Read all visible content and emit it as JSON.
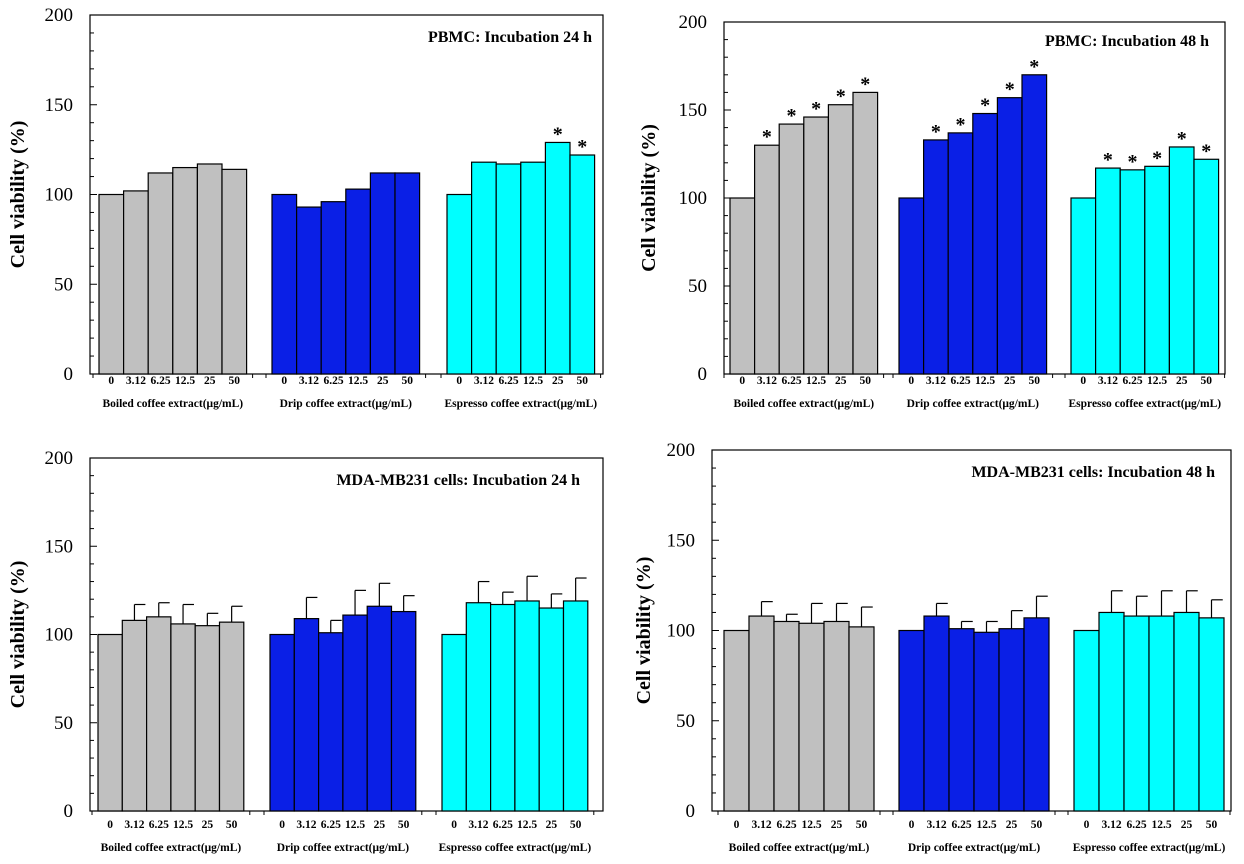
{
  "chart_data": [
    {
      "type": "bar",
      "title": "PBMC: Incubation 24 h",
      "ylabel": "Cell viability (%)",
      "ylim": [
        0,
        200
      ],
      "yticks": [
        0,
        50,
        100,
        150,
        200
      ],
      "legend": "none",
      "groups": [
        {
          "name": "Boiled coffee extract(μg/mL)",
          "color": "#c0c0c0",
          "categories": [
            "0",
            "3.12",
            "6.25",
            "12.5",
            "25",
            "50"
          ],
          "values": [
            100,
            102,
            112,
            115,
            117,
            114
          ],
          "errors": [
            0,
            0,
            0,
            0,
            0,
            0
          ],
          "significant": [
            false,
            false,
            false,
            false,
            false,
            false
          ]
        },
        {
          "name": "Drip coffee extract(μg/mL)",
          "color": "#0a1fe6",
          "categories": [
            "0",
            "3.12",
            "6.25",
            "12.5",
            "25",
            "50"
          ],
          "values": [
            100,
            93,
            96,
            103,
            112,
            112
          ],
          "errors": [
            0,
            0,
            0,
            0,
            0,
            0
          ],
          "significant": [
            false,
            false,
            false,
            false,
            false,
            false
          ]
        },
        {
          "name": "Espresso coffee extract(μg/mL)",
          "color": "#00ffff",
          "categories": [
            "0",
            "3.12",
            "6.25",
            "12.5",
            "25",
            "50"
          ],
          "values": [
            100,
            118,
            117,
            118,
            129,
            122
          ],
          "errors": [
            0,
            0,
            0,
            0,
            0,
            0
          ],
          "significant": [
            false,
            false,
            false,
            false,
            true,
            true
          ]
        }
      ]
    },
    {
      "type": "bar",
      "title": "PBMC: Incubation 48 h",
      "ylabel": "Cell viability (%)",
      "ylim": [
        0,
        200
      ],
      "yticks": [
        0,
        50,
        100,
        150,
        200
      ],
      "legend": "none",
      "groups": [
        {
          "name": "Boiled coffee extract(μg/mL)",
          "color": "#c0c0c0",
          "categories": [
            "0",
            "3.12",
            "6.25",
            "12.5",
            "25",
            "50"
          ],
          "values": [
            100,
            130,
            142,
            146,
            153,
            160
          ],
          "errors": [
            0,
            0,
            0,
            0,
            0,
            0
          ],
          "significant": [
            false,
            true,
            true,
            true,
            true,
            true
          ]
        },
        {
          "name": "Drip coffee extract(μg/mL)",
          "color": "#0a1fe6",
          "categories": [
            "0",
            "3.12",
            "6.25",
            "12.5",
            "25",
            "50"
          ],
          "values": [
            100,
            133,
            137,
            148,
            157,
            170
          ],
          "errors": [
            0,
            0,
            0,
            0,
            0,
            0
          ],
          "significant": [
            false,
            true,
            true,
            true,
            true,
            true
          ]
        },
        {
          "name": "Espresso coffee extract(μg/mL)",
          "color": "#00ffff",
          "categories": [
            "0",
            "3.12",
            "6.25",
            "12.5",
            "25",
            "50"
          ],
          "values": [
            100,
            117,
            116,
            118,
            129,
            122
          ],
          "errors": [
            0,
            0,
            0,
            0,
            0,
            0
          ],
          "significant": [
            false,
            true,
            true,
            true,
            true,
            true
          ]
        }
      ]
    },
    {
      "type": "bar",
      "title": "MDA-MB231 cells: Incubation 24 h",
      "ylabel": "Cell viability (%)",
      "ylim": [
        0,
        200
      ],
      "yticks": [
        0,
        50,
        100,
        150,
        200
      ],
      "legend": "none",
      "groups": [
        {
          "name": "Boiled coffee extract(μg/mL)",
          "color": "#c0c0c0",
          "categories": [
            "0",
            "3.12",
            "6.25",
            "12.5",
            "25",
            "50"
          ],
          "values": [
            100,
            108,
            110,
            106,
            105,
            107
          ],
          "errors": [
            0,
            9,
            8,
            11,
            7,
            9
          ],
          "significant": [
            false,
            false,
            false,
            false,
            false,
            false
          ]
        },
        {
          "name": "Drip coffee extract(μg/mL)",
          "color": "#0a1fe6",
          "categories": [
            "0",
            "3.12",
            "6.25",
            "12.5",
            "25",
            "50"
          ],
          "values": [
            100,
            109,
            101,
            111,
            116,
            113
          ],
          "errors": [
            0,
            12,
            7,
            14,
            13,
            9
          ],
          "significant": [
            false,
            false,
            false,
            false,
            false,
            false
          ]
        },
        {
          "name": "Espresso coffee extract(μg/mL)",
          "color": "#00ffff",
          "categories": [
            "0",
            "3.12",
            "6.25",
            "12.5",
            "25",
            "50"
          ],
          "values": [
            100,
            118,
            117,
            119,
            115,
            119
          ],
          "errors": [
            0,
            12,
            7,
            14,
            8,
            13
          ],
          "significant": [
            false,
            false,
            false,
            false,
            false,
            false
          ]
        }
      ]
    },
    {
      "type": "bar",
      "title": "MDA-MB231 cells: Incubation 48 h",
      "ylabel": "Cell viability (%)",
      "ylim": [
        0,
        200
      ],
      "yticks": [
        0,
        50,
        100,
        150,
        200
      ],
      "legend": "none",
      "groups": [
        {
          "name": "Boiled coffee extract(μg/mL)",
          "color": "#c0c0c0",
          "categories": [
            "0",
            "3.12",
            "6.25",
            "12.5",
            "25",
            "50"
          ],
          "values": [
            100,
            108,
            105,
            104,
            105,
            102
          ],
          "errors": [
            0,
            8,
            4,
            11,
            10,
            11
          ],
          "significant": [
            false,
            false,
            false,
            false,
            false,
            false
          ]
        },
        {
          "name": "Drip coffee extract(μg/mL)",
          "color": "#0a1fe6",
          "categories": [
            "0",
            "3.12",
            "6.25",
            "12.5",
            "25",
            "50"
          ],
          "values": [
            100,
            108,
            101,
            99,
            101,
            107
          ],
          "errors": [
            0,
            7,
            4,
            6,
            10,
            12
          ],
          "significant": [
            false,
            false,
            false,
            false,
            false,
            false
          ]
        },
        {
          "name": "Espresso coffee extract(μg/mL)",
          "color": "#00ffff",
          "categories": [
            "0",
            "3.12",
            "6.25",
            "12.5",
            "25",
            "50"
          ],
          "values": [
            100,
            110,
            108,
            108,
            110,
            107
          ],
          "errors": [
            0,
            12,
            11,
            14,
            12,
            10
          ],
          "significant": [
            false,
            false,
            false,
            false,
            false,
            false
          ]
        }
      ]
    }
  ],
  "significance_marker": "*"
}
